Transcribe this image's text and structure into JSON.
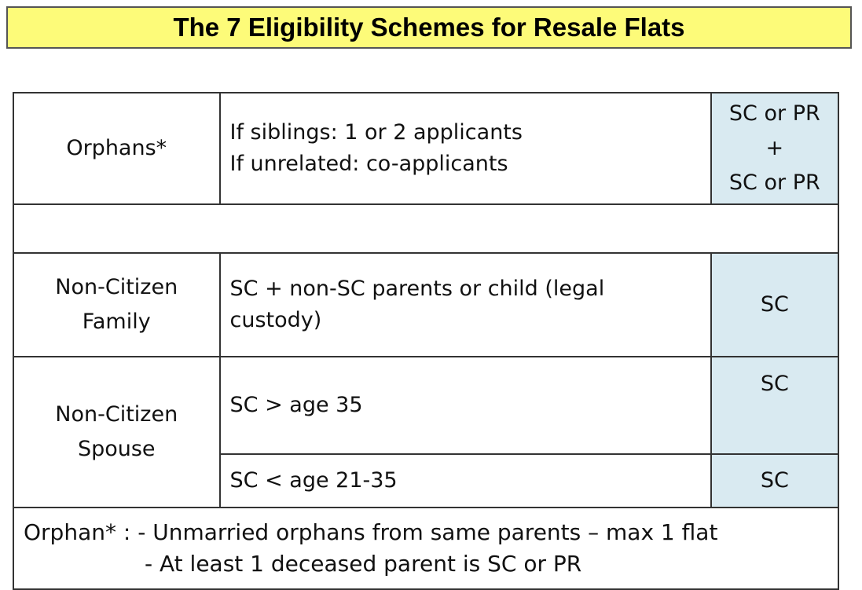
{
  "title": "The 7 Eligibility Schemes for Resale Flats",
  "rows": {
    "orphans": {
      "scheme": "Orphans*",
      "desc_line1": "If siblings: 1 or 2 applicants",
      "desc_line2": "If unrelated: co-applicants",
      "elig_line1": "SC or PR",
      "elig_line2": "+",
      "elig_line3": "SC or PR"
    },
    "non_citizen_family": {
      "scheme_line1": "Non-Citizen",
      "scheme_line2": "Family",
      "desc_line1": "SC + non-SC parents or child (legal",
      "desc_line2": "custody)",
      "elig": "SC"
    },
    "non_citizen_spouse": {
      "scheme_line1": "Non-Citizen",
      "scheme_line2": "Spouse",
      "sub1_desc": "SC > age 35",
      "sub1_elig": "SC",
      "sub2_desc": "SC < age 21-35",
      "sub2_elig": "SC"
    }
  },
  "footnote": {
    "line1": "Orphan* : - Unmarried orphans from same parents – max 1 flat",
    "line2": "- At least 1 deceased parent is SC or PR"
  },
  "colors": {
    "title_bg": "#fdfb79",
    "eligibility_bg": "#d9eaf1"
  }
}
